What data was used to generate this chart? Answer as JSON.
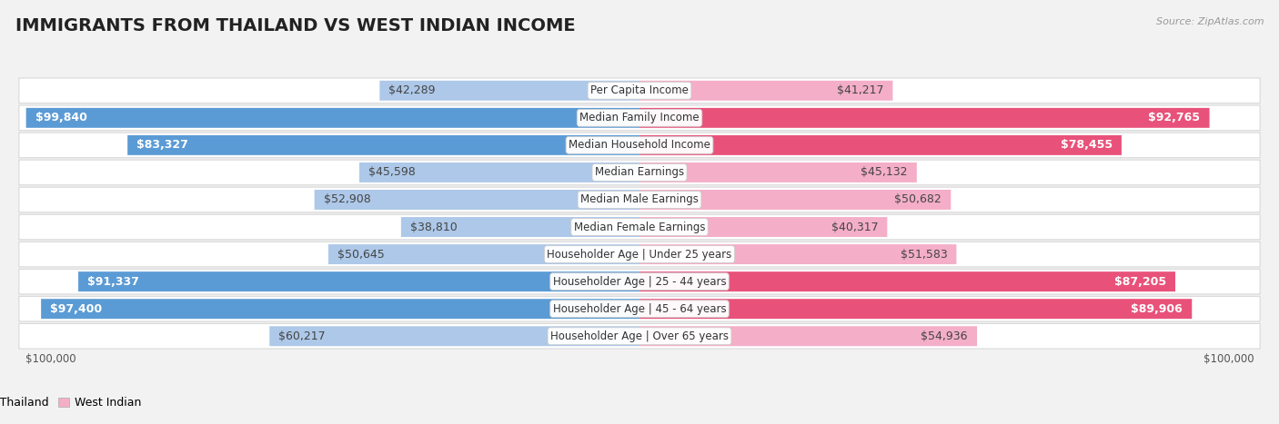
{
  "title": "IMMIGRANTS FROM THAILAND VS WEST INDIAN INCOME",
  "source": "Source: ZipAtlas.com",
  "categories": [
    "Per Capita Income",
    "Median Family Income",
    "Median Household Income",
    "Median Earnings",
    "Median Male Earnings",
    "Median Female Earnings",
    "Householder Age | Under 25 years",
    "Householder Age | 25 - 44 years",
    "Householder Age | 45 - 64 years",
    "Householder Age | Over 65 years"
  ],
  "thailand_values": [
    42289,
    99840,
    83327,
    45598,
    52908,
    38810,
    50645,
    91337,
    97400,
    60217
  ],
  "westindian_values": [
    41217,
    92765,
    78455,
    45132,
    50682,
    40317,
    51583,
    87205,
    89906,
    54936
  ],
  "thailand_color_light": "#adc8e8",
  "thailand_color_dark": "#5b9bd5",
  "westindian_color_light": "#f4aec8",
  "westindian_color_dark": "#e8527a",
  "max_value": 100000,
  "bg_color": "#f2f2f2",
  "row_bg_color": "#ffffff",
  "title_fontsize": 14,
  "value_fontsize": 9,
  "cat_fontsize": 8.5,
  "threshold_white_text": 65000
}
